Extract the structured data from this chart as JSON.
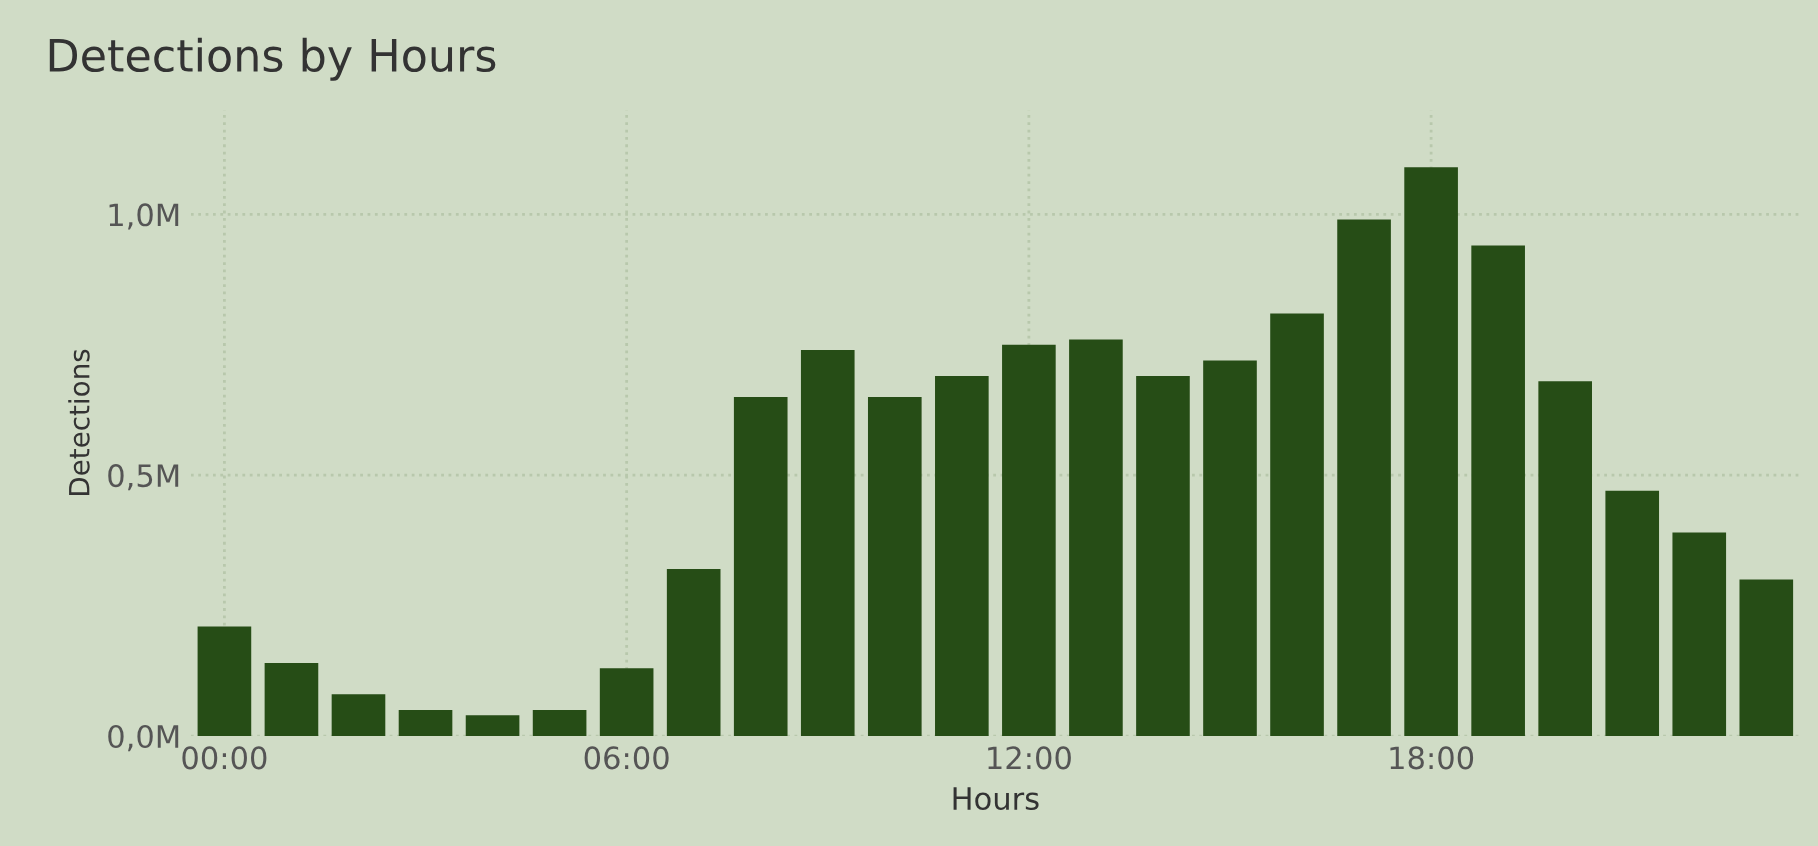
{
  "chart_data": {
    "type": "bar",
    "title": "Detections by Hours",
    "xlabel": "Hours",
    "ylabel": "Detections",
    "x": [
      0,
      1,
      2,
      3,
      4,
      5,
      6,
      7,
      8,
      9,
      10,
      11,
      12,
      13,
      14,
      15,
      16,
      17,
      18,
      19,
      20,
      21,
      22,
      23
    ],
    "values": [
      210000,
      140000,
      80000,
      50000,
      40000,
      50000,
      130000,
      320000,
      650000,
      740000,
      650000,
      690000,
      750000,
      760000,
      690000,
      720000,
      810000,
      990000,
      1090000,
      940000,
      680000,
      470000,
      390000,
      300000
    ],
    "color": "#264d16",
    "xlim": [
      -0.5,
      23.5
    ],
    "xticks": [
      {
        "value": 0,
        "label": "00:00"
      },
      {
        "value": 6,
        "label": "06:00"
      },
      {
        "value": 12,
        "label": "12:00"
      },
      {
        "value": 18,
        "label": "18:00"
      }
    ],
    "ylim": [
      0,
      1200000
    ],
    "yticks": [
      {
        "value": 0,
        "label": "0,0M"
      },
      {
        "value": 500000,
        "label": "0,5M"
      },
      {
        "value": 1000000,
        "label": "1,0M"
      }
    ],
    "grid": true
  }
}
